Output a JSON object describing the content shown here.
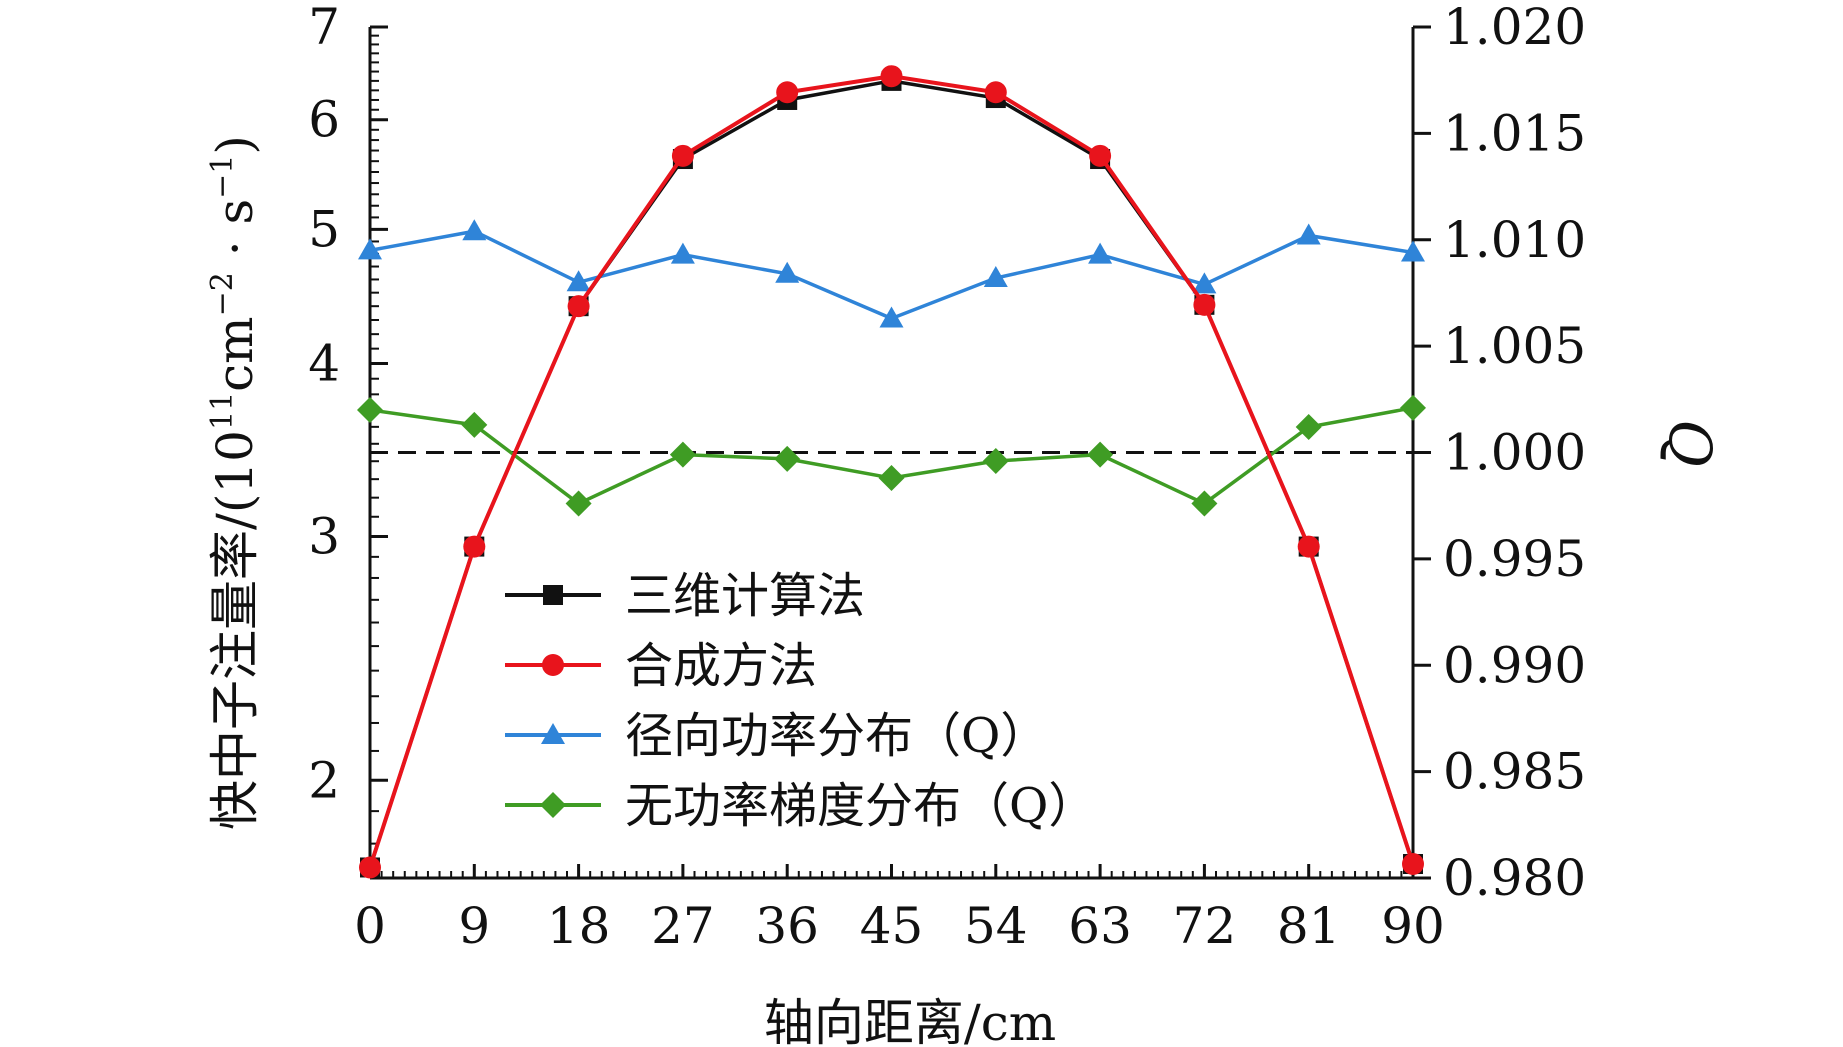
{
  "chart_data": {
    "type": "line",
    "xlabel": "轴向距离/cm",
    "ylabel_left_main": "快中子注量率/(10",
    "ylabel_left_exp1": "11",
    "ylabel_left_mid": "cm",
    "ylabel_left_exp2": "−2",
    "ylabel_left_dot": " · s",
    "ylabel_left_exp3": "−1",
    "ylabel_left_end": ")",
    "ylabel_right": "Q",
    "x": [
      0,
      9,
      18,
      27,
      36,
      45,
      54,
      63,
      72,
      81,
      90
    ],
    "x_ticks": [
      "0",
      "9",
      "18",
      "27",
      "36",
      "45",
      "54",
      "63",
      "72",
      "81",
      "90"
    ],
    "xlim": [
      0,
      90
    ],
    "y_left_scale": "log",
    "y_left_lim": [
      1.7,
      7.0
    ],
    "y_left_ticks": [
      "2",
      "3",
      "4",
      "5",
      "6",
      "7"
    ],
    "y_right_lim": [
      0.98,
      1.02
    ],
    "y_right_ticks": [
      "0.980",
      "0.985",
      "0.990",
      "0.995",
      "1.000",
      "1.005",
      "1.010",
      "1.015",
      "1.020"
    ],
    "reference_line": {
      "axis": "right",
      "value": 1.0,
      "style": "dashed"
    },
    "legend_position": "lower-left",
    "series": [
      {
        "name": "三维计算法",
        "axis": "left",
        "color": "#111111",
        "marker": "square",
        "values": [
          1.73,
          2.95,
          4.4,
          5.62,
          6.2,
          6.4,
          6.22,
          5.62,
          4.41,
          2.95,
          1.74
        ]
      },
      {
        "name": "合成方法",
        "axis": "left",
        "color": "#e8141c",
        "marker": "circle",
        "values": [
          1.73,
          2.95,
          4.4,
          5.65,
          6.28,
          6.45,
          6.28,
          5.65,
          4.41,
          2.95,
          1.74
        ]
      },
      {
        "name": "径向功率分布（Q）",
        "axis": "right",
        "color": "#2f84d8",
        "marker": "triangle",
        "values": [
          1.0095,
          1.0104,
          1.008,
          1.0093,
          1.0084,
          1.0063,
          1.0082,
          1.0093,
          1.0079,
          1.0102,
          1.0094
        ]
      },
      {
        "name": "无功率梯度分布（Q）",
        "axis": "right",
        "color": "#3f9c24",
        "marker": "diamond",
        "values": [
          1.002,
          1.0013,
          0.9976,
          0.9999,
          0.9997,
          0.9988,
          0.9996,
          0.9999,
          0.9976,
          1.0012,
          1.0021
        ]
      }
    ]
  }
}
